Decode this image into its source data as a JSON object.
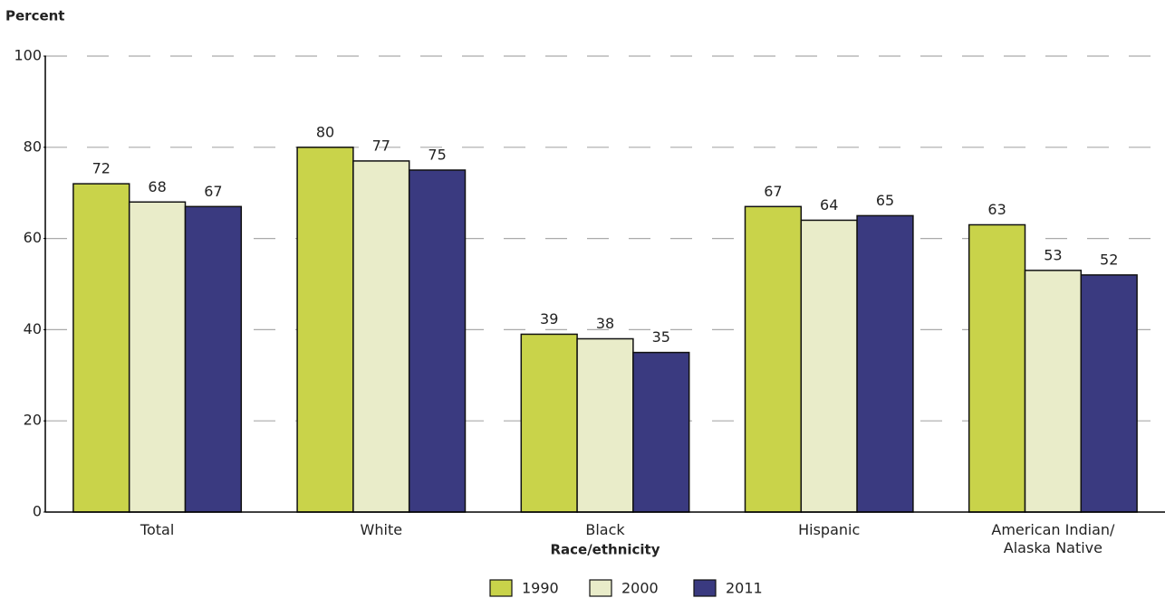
{
  "chart_data": {
    "type": "bar",
    "y_label": "Percent",
    "x_label": "Race/ethnicity",
    "categories": [
      "Total",
      "White",
      "Black",
      "Hispanic",
      "American Indian/ Alaska Native"
    ],
    "series": [
      {
        "name": "1990",
        "color": "#c9d34a",
        "values": [
          72,
          80,
          39,
          67,
          63
        ]
      },
      {
        "name": "2000",
        "color": "#e9ecc9",
        "values": [
          68,
          77,
          38,
          64,
          53
        ]
      },
      {
        "name": "2011",
        "color": "#3a3a80",
        "values": [
          67,
          75,
          35,
          65,
          52
        ]
      }
    ],
    "ylim": [
      0,
      100
    ],
    "yticks": [
      0,
      20,
      40,
      60,
      80,
      100
    ],
    "grid": true,
    "legend": "bottom"
  }
}
